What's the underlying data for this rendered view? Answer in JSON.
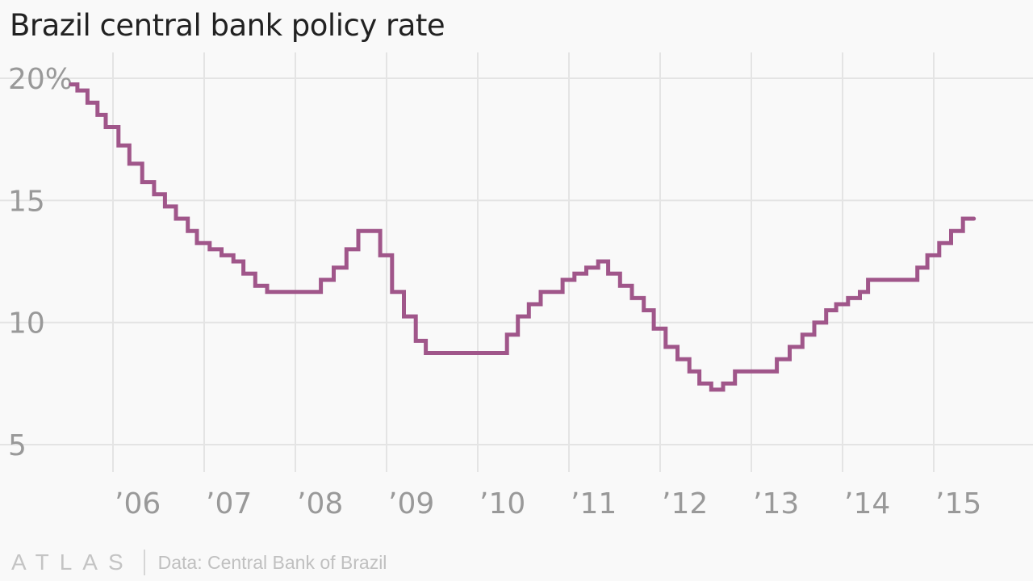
{
  "footer": {
    "brand": "ATLAS",
    "source": "Data: Central Bank of Brazil"
  },
  "chart_data": {
    "type": "line",
    "step": true,
    "title": "Brazil central bank policy rate",
    "xlabel": "",
    "ylabel": "",
    "xlim": [
      2005.55,
      2016.0
    ],
    "ylim": [
      3.5,
      21.5
    ],
    "x_ticks": [
      2006,
      2007,
      2008,
      2009,
      2010,
      2011,
      2012,
      2013,
      2014,
      2015
    ],
    "x_tick_labels": [
      "’06",
      "’07",
      "’08",
      "’09",
      "’10",
      "’11",
      "’12",
      "’13",
      "’14",
      "’15"
    ],
    "y_ticks": [
      5,
      10,
      15,
      20
    ],
    "y_tick_labels": [
      "5",
      "10",
      "15",
      "20%"
    ],
    "grid": true,
    "colors": {
      "line": "#a0568a",
      "grid": "#e4e4e4",
      "tick": "#999999"
    },
    "series": [
      {
        "x": [
          2005.54,
          2005.61,
          2005.72,
          2005.83,
          2005.92,
          2006.06,
          2006.18,
          2006.32,
          2006.45,
          2006.57,
          2006.69,
          2006.82,
          2006.92,
          2007.06,
          2007.19,
          2007.32,
          2007.43,
          2007.56,
          2007.69,
          2008.28,
          2008.42,
          2008.56,
          2008.69,
          2008.93,
          2009.06,
          2009.19,
          2009.32,
          2009.43,
          2010.32,
          2010.44,
          2010.56,
          2010.69,
          2010.93,
          2011.06,
          2011.19,
          2011.32,
          2011.43,
          2011.56,
          2011.69,
          2011.82,
          2011.93,
          2012.06,
          2012.19,
          2012.32,
          2012.43,
          2012.56,
          2012.69,
          2012.82,
          2013.28,
          2013.42,
          2013.56,
          2013.69,
          2013.82,
          2013.93,
          2014.06,
          2014.19,
          2014.28,
          2014.82,
          2014.93,
          2015.06,
          2015.19,
          2015.32,
          2015.44,
          2015.56,
          2015.63
        ],
        "y": [
          19.75,
          19.5,
          19.0,
          18.5,
          18.0,
          17.25,
          16.5,
          15.75,
          15.25,
          14.75,
          14.25,
          13.75,
          13.25,
          13.0,
          12.75,
          12.5,
          12.0,
          11.5,
          11.25,
          11.75,
          12.25,
          13.0,
          13.75,
          13.75,
          12.75,
          11.25,
          10.25,
          9.25,
          9.5,
          10.25,
          10.75,
          10.75,
          10.75,
          11.25,
          11.75,
          12.0,
          12.25,
          12.5,
          12.0,
          11.5,
          11.0,
          10.5,
          9.75,
          9.0,
          8.5,
          8.0,
          7.5,
          7.25,
          7.5,
          8.0,
          8.5,
          9.0,
          9.5,
          10.0,
          10.5,
          10.75,
          11.0,
          11.25,
          11.75,
          12.25,
          12.75,
          13.25,
          13.75,
          14.25,
          14.25
        ],
        "y_segment_values": [
          19.75,
          19.5,
          19.0,
          18.5,
          18.0,
          17.25,
          16.5,
          15.75,
          15.25,
          14.75,
          14.25,
          13.75,
          13.25,
          13.0,
          12.75,
          12.5,
          12.0,
          11.5,
          11.25,
          11.75,
          12.25,
          13.0,
          13.75,
          12.75,
          11.25,
          10.25,
          9.25,
          8.75,
          9.5,
          10.25,
          10.75,
          11.25,
          11.75,
          12.0,
          12.25,
          12.5,
          12.0,
          11.5,
          11.0,
          10.5,
          9.75,
          9.0,
          8.5,
          8.0,
          7.5,
          7.25,
          7.5,
          8.0,
          8.5,
          9.0,
          9.5,
          10.0,
          10.5,
          10.75,
          11.0,
          11.25,
          11.75,
          12.25,
          12.75,
          13.25,
          13.75,
          14.25
        ]
      }
    ]
  }
}
